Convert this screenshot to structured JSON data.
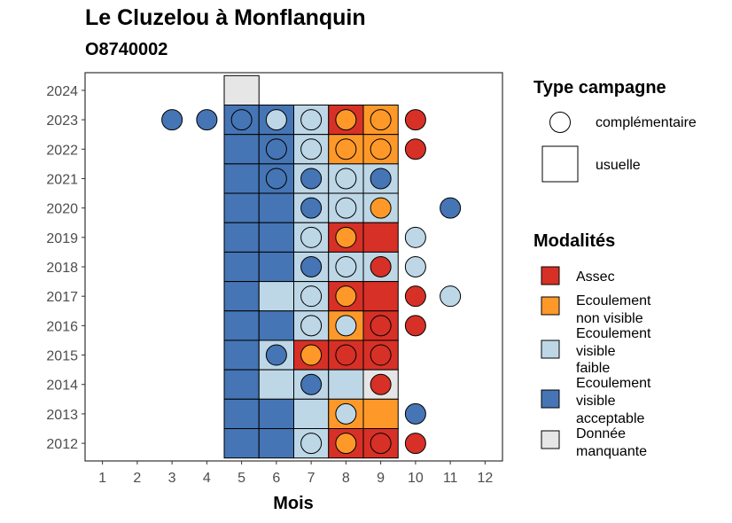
{
  "chart_data": {
    "type": "heatmap",
    "title": "Le Cluzelou à Monflanquin",
    "subtitle": "O8740002",
    "xlabel": "Mois",
    "ylabel": "",
    "x_ticks": [
      1,
      2,
      3,
      4,
      5,
      6,
      7,
      8,
      9,
      10,
      11,
      12
    ],
    "y_ticks": [
      2012,
      2013,
      2014,
      2015,
      2016,
      2017,
      2018,
      2019,
      2020,
      2021,
      2022,
      2023,
      2024
    ],
    "xlim": [
      0.5,
      12.5
    ],
    "ylim": [
      2011.4,
      2024.6
    ],
    "grid": false,
    "legend_placement": "right",
    "colors": {
      "assec": "#d73027",
      "ecoulement_non_visible": "#fe9929",
      "ecoulement_visible_faible": "#bdd7e7",
      "ecoulement_visible_acceptable": "#4575b4",
      "donnee_manquante": "#e6e6e6"
    },
    "legend_campagne": {
      "title": "Type campagne",
      "items": [
        {
          "shape": "circle",
          "label": "complémentaire"
        },
        {
          "shape": "square",
          "label": "usuelle"
        }
      ]
    },
    "legend_modalites": {
      "title": "Modalités",
      "items": [
        {
          "key": "assec",
          "lines": [
            "Assec"
          ]
        },
        {
          "key": "ecoulement_non_visible",
          "lines": [
            "Ecoulement",
            "non visible"
          ]
        },
        {
          "key": "ecoulement_visible_faible",
          "lines": [
            "Ecoulement",
            "visible",
            "faible"
          ]
        },
        {
          "key": "ecoulement_visible_acceptable",
          "lines": [
            "Ecoulement",
            "visible",
            "acceptable"
          ]
        },
        {
          "key": "donnee_manquante",
          "lines": [
            "Donnée",
            "manquante"
          ]
        }
      ]
    },
    "usuelle": [
      {
        "year": 2024,
        "month": 5,
        "modalite": "donnee_manquante"
      },
      {
        "year": 2023,
        "month": 5,
        "modalite": "ecoulement_visible_acceptable"
      },
      {
        "year": 2023,
        "month": 6,
        "modalite": "ecoulement_visible_acceptable"
      },
      {
        "year": 2023,
        "month": 7,
        "modalite": "ecoulement_visible_faible"
      },
      {
        "year": 2023,
        "month": 8,
        "modalite": "assec"
      },
      {
        "year": 2023,
        "month": 9,
        "modalite": "ecoulement_non_visible"
      },
      {
        "year": 2022,
        "month": 5,
        "modalite": "ecoulement_visible_acceptable"
      },
      {
        "year": 2022,
        "month": 6,
        "modalite": "ecoulement_visible_acceptable"
      },
      {
        "year": 2022,
        "month": 7,
        "modalite": "ecoulement_visible_faible"
      },
      {
        "year": 2022,
        "month": 8,
        "modalite": "ecoulement_non_visible"
      },
      {
        "year": 2022,
        "month": 9,
        "modalite": "ecoulement_non_visible"
      },
      {
        "year": 2021,
        "month": 5,
        "modalite": "ecoulement_visible_acceptable"
      },
      {
        "year": 2021,
        "month": 6,
        "modalite": "ecoulement_visible_acceptable"
      },
      {
        "year": 2021,
        "month": 7,
        "modalite": "ecoulement_visible_faible"
      },
      {
        "year": 2021,
        "month": 8,
        "modalite": "ecoulement_visible_faible"
      },
      {
        "year": 2021,
        "month": 9,
        "modalite": "ecoulement_visible_faible"
      },
      {
        "year": 2020,
        "month": 5,
        "modalite": "ecoulement_visible_acceptable"
      },
      {
        "year": 2020,
        "month": 6,
        "modalite": "ecoulement_visible_acceptable"
      },
      {
        "year": 2020,
        "month": 7,
        "modalite": "ecoulement_visible_faible"
      },
      {
        "year": 2020,
        "month": 8,
        "modalite": "ecoulement_visible_faible"
      },
      {
        "year": 2020,
        "month": 9,
        "modalite": "ecoulement_visible_faible"
      },
      {
        "year": 2019,
        "month": 5,
        "modalite": "ecoulement_visible_acceptable"
      },
      {
        "year": 2019,
        "month": 6,
        "modalite": "ecoulement_visible_acceptable"
      },
      {
        "year": 2019,
        "month": 7,
        "modalite": "ecoulement_visible_faible"
      },
      {
        "year": 2019,
        "month": 8,
        "modalite": "assec"
      },
      {
        "year": 2019,
        "month": 9,
        "modalite": "assec"
      },
      {
        "year": 2018,
        "month": 5,
        "modalite": "ecoulement_visible_acceptable"
      },
      {
        "year": 2018,
        "month": 6,
        "modalite": "ecoulement_visible_acceptable"
      },
      {
        "year": 2018,
        "month": 7,
        "modalite": "ecoulement_visible_faible"
      },
      {
        "year": 2018,
        "month": 8,
        "modalite": "ecoulement_visible_faible"
      },
      {
        "year": 2018,
        "month": 9,
        "modalite": "ecoulement_visible_faible"
      },
      {
        "year": 2017,
        "month": 5,
        "modalite": "ecoulement_visible_acceptable"
      },
      {
        "year": 2017,
        "month": 6,
        "modalite": "ecoulement_visible_faible"
      },
      {
        "year": 2017,
        "month": 7,
        "modalite": "ecoulement_visible_faible"
      },
      {
        "year": 2017,
        "month": 8,
        "modalite": "assec"
      },
      {
        "year": 2017,
        "month": 9,
        "modalite": "assec"
      },
      {
        "year": 2016,
        "month": 5,
        "modalite": "ecoulement_visible_acceptable"
      },
      {
        "year": 2016,
        "month": 6,
        "modalite": "ecoulement_visible_acceptable"
      },
      {
        "year": 2016,
        "month": 7,
        "modalite": "ecoulement_visible_faible"
      },
      {
        "year": 2016,
        "month": 8,
        "modalite": "ecoulement_non_visible"
      },
      {
        "year": 2016,
        "month": 9,
        "modalite": "assec"
      },
      {
        "year": 2015,
        "month": 5,
        "modalite": "ecoulement_visible_acceptable"
      },
      {
        "year": 2015,
        "month": 6,
        "modalite": "ecoulement_visible_faible"
      },
      {
        "year": 2015,
        "month": 7,
        "modalite": "assec"
      },
      {
        "year": 2015,
        "month": 8,
        "modalite": "assec"
      },
      {
        "year": 2015,
        "month": 9,
        "modalite": "assec"
      },
      {
        "year": 2014,
        "month": 5,
        "modalite": "ecoulement_visible_acceptable"
      },
      {
        "year": 2014,
        "month": 6,
        "modalite": "ecoulement_visible_faible"
      },
      {
        "year": 2014,
        "month": 7,
        "modalite": "ecoulement_visible_faible"
      },
      {
        "year": 2014,
        "month": 8,
        "modalite": "ecoulement_visible_faible"
      },
      {
        "year": 2014,
        "month": 9,
        "modalite": "donnee_manquante"
      },
      {
        "year": 2013,
        "month": 5,
        "modalite": "ecoulement_visible_acceptable"
      },
      {
        "year": 2013,
        "month": 6,
        "modalite": "ecoulement_visible_acceptable"
      },
      {
        "year": 2013,
        "month": 7,
        "modalite": "ecoulement_visible_faible"
      },
      {
        "year": 2013,
        "month": 8,
        "modalite": "ecoulement_non_visible"
      },
      {
        "year": 2013,
        "month": 9,
        "modalite": "ecoulement_non_visible"
      },
      {
        "year": 2012,
        "month": 5,
        "modalite": "ecoulement_visible_acceptable"
      },
      {
        "year": 2012,
        "month": 6,
        "modalite": "ecoulement_visible_acceptable"
      },
      {
        "year": 2012,
        "month": 7,
        "modalite": "ecoulement_visible_faible"
      },
      {
        "year": 2012,
        "month": 8,
        "modalite": "assec"
      },
      {
        "year": 2012,
        "month": 9,
        "modalite": "assec"
      }
    ],
    "complementaire": [
      {
        "year": 2023,
        "month": 3,
        "modalite": "ecoulement_visible_acceptable"
      },
      {
        "year": 2023,
        "month": 4,
        "modalite": "ecoulement_visible_acceptable"
      },
      {
        "year": 2023,
        "month": 5,
        "modalite": "ecoulement_visible_acceptable"
      },
      {
        "year": 2023,
        "month": 6,
        "modalite": "ecoulement_visible_faible"
      },
      {
        "year": 2023,
        "month": 7,
        "modalite": "ecoulement_visible_faible"
      },
      {
        "year": 2023,
        "month": 8,
        "modalite": "ecoulement_non_visible"
      },
      {
        "year": 2023,
        "month": 9,
        "modalite": "ecoulement_non_visible"
      },
      {
        "year": 2023,
        "month": 10,
        "modalite": "assec"
      },
      {
        "year": 2022,
        "month": 6,
        "modalite": "ecoulement_visible_acceptable"
      },
      {
        "year": 2022,
        "month": 7,
        "modalite": "ecoulement_visible_faible"
      },
      {
        "year": 2022,
        "month": 8,
        "modalite": "ecoulement_non_visible"
      },
      {
        "year": 2022,
        "month": 9,
        "modalite": "ecoulement_non_visible"
      },
      {
        "year": 2022,
        "month": 10,
        "modalite": "assec"
      },
      {
        "year": 2021,
        "month": 6,
        "modalite": "ecoulement_visible_acceptable"
      },
      {
        "year": 2021,
        "month": 7,
        "modalite": "ecoulement_visible_acceptable"
      },
      {
        "year": 2021,
        "month": 8,
        "modalite": "ecoulement_visible_faible"
      },
      {
        "year": 2021,
        "month": 9,
        "modalite": "ecoulement_visible_acceptable"
      },
      {
        "year": 2020,
        "month": 7,
        "modalite": "ecoulement_visible_acceptable"
      },
      {
        "year": 2020,
        "month": 8,
        "modalite": "ecoulement_visible_faible"
      },
      {
        "year": 2020,
        "month": 9,
        "modalite": "ecoulement_non_visible"
      },
      {
        "year": 2020,
        "month": 11,
        "modalite": "ecoulement_visible_acceptable"
      },
      {
        "year": 2019,
        "month": 7,
        "modalite": "ecoulement_visible_faible"
      },
      {
        "year": 2019,
        "month": 8,
        "modalite": "ecoulement_non_visible"
      },
      {
        "year": 2019,
        "month": 10,
        "modalite": "ecoulement_visible_faible"
      },
      {
        "year": 2018,
        "month": 7,
        "modalite": "ecoulement_visible_acceptable"
      },
      {
        "year": 2018,
        "month": 8,
        "modalite": "ecoulement_visible_faible"
      },
      {
        "year": 2018,
        "month": 9,
        "modalite": "assec"
      },
      {
        "year": 2018,
        "month": 10,
        "modalite": "ecoulement_visible_faible"
      },
      {
        "year": 2017,
        "month": 7,
        "modalite": "ecoulement_visible_faible"
      },
      {
        "year": 2017,
        "month": 8,
        "modalite": "ecoulement_non_visible"
      },
      {
        "year": 2017,
        "month": 10,
        "modalite": "assec"
      },
      {
        "year": 2017,
        "month": 11,
        "modalite": "ecoulement_visible_faible"
      },
      {
        "year": 2016,
        "month": 7,
        "modalite": "ecoulement_visible_faible"
      },
      {
        "year": 2016,
        "month": 8,
        "modalite": "ecoulement_visible_faible"
      },
      {
        "year": 2016,
        "month": 9,
        "modalite": "assec"
      },
      {
        "year": 2016,
        "month": 10,
        "modalite": "assec"
      },
      {
        "year": 2015,
        "month": 6,
        "modalite": "ecoulement_visible_acceptable"
      },
      {
        "year": 2015,
        "month": 7,
        "modalite": "ecoulement_non_visible"
      },
      {
        "year": 2015,
        "month": 8,
        "modalite": "assec"
      },
      {
        "year": 2015,
        "month": 9,
        "modalite": "assec"
      },
      {
        "year": 2014,
        "month": 7,
        "modalite": "ecoulement_visible_acceptable"
      },
      {
        "year": 2014,
        "month": 9,
        "modalite": "assec"
      },
      {
        "year": 2013,
        "month": 8,
        "modalite": "ecoulement_visible_faible"
      },
      {
        "year": 2013,
        "month": 10,
        "modalite": "ecoulement_visible_acceptable"
      },
      {
        "year": 2012,
        "month": 7,
        "modalite": "ecoulement_visible_faible"
      },
      {
        "year": 2012,
        "month": 8,
        "modalite": "ecoulement_non_visible"
      },
      {
        "year": 2012,
        "month": 9,
        "modalite": "assec"
      },
      {
        "year": 2012,
        "month": 10,
        "modalite": "assec"
      }
    ]
  }
}
